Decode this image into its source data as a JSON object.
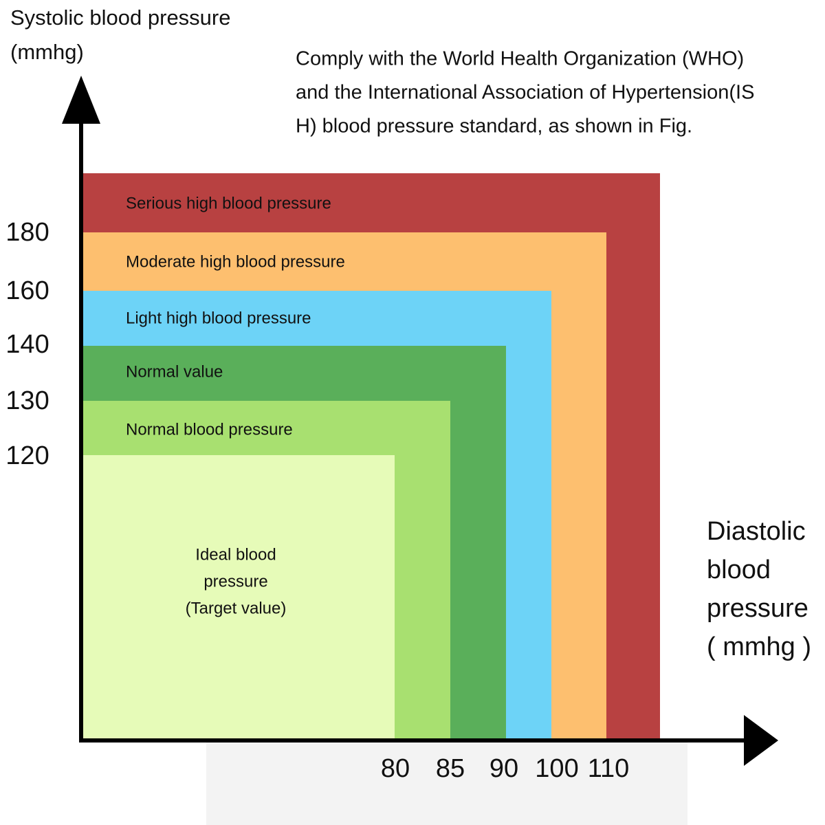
{
  "y_axis": {
    "title": [
      "Systolic blood pressure",
      "(mmhg)"
    ],
    "ticks": [
      180,
      160,
      140,
      130,
      120
    ]
  },
  "x_axis": {
    "title": [
      "Diastolic",
      "blood",
      "pressure",
      "( mmhg )"
    ],
    "ticks": [
      80,
      85,
      90,
      100,
      110
    ]
  },
  "note": [
    "Comply with the World Health Organization (WHO)",
    "and the International Association of Hypertension(IS",
    "H) blood pressure standard, as shown in Fig."
  ],
  "zones": [
    {
      "label": [
        "Serious high blood pressure"
      ],
      "color": "#b84141"
    },
    {
      "label": [
        "Moderate high blood pressure"
      ],
      "color": "#fdbf6f"
    },
    {
      "label": [
        "Light high blood pressure"
      ],
      "color": "#6dd3f7"
    },
    {
      "label": [
        "Normal value"
      ],
      "color": "#5aaf5a"
    },
    {
      "label": [
        "Normal blood pressure"
      ],
      "color": "#a8e070"
    },
    {
      "label": [
        "Ideal blood",
        "pressure",
        "(Target value)"
      ],
      "color": "#e6fbb8"
    }
  ]
}
